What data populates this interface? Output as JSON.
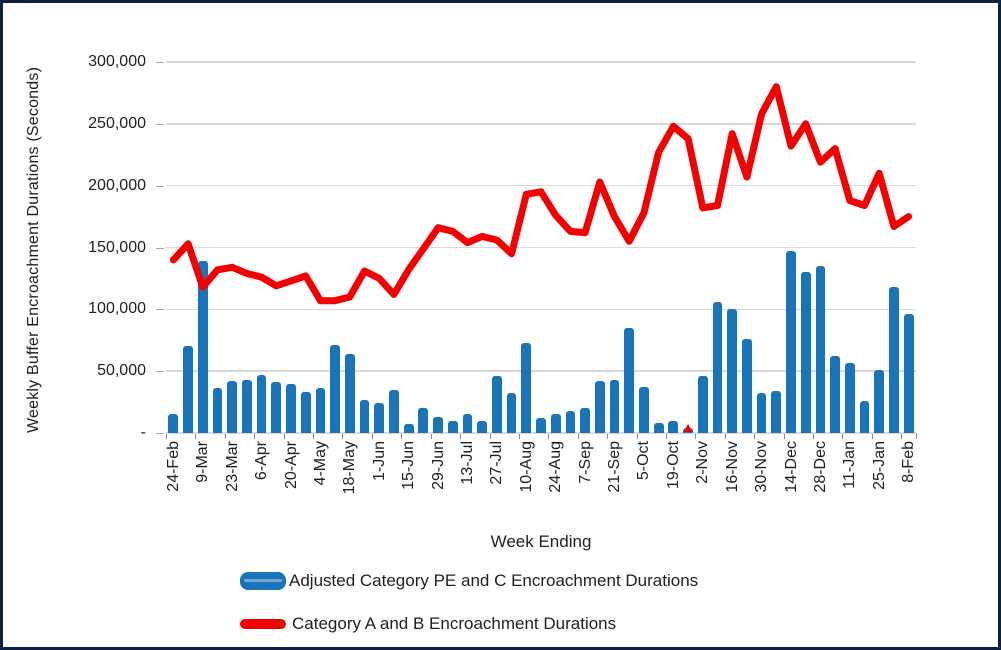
{
  "figure": {
    "border_color": "#0d2145",
    "background_color": "#ffffff",
    "gridline_color": "#d9d9d9",
    "bar_color": "#1a74b8",
    "line_color": "#f40000"
  },
  "chart_data": {
    "type": "combo",
    "title": "",
    "xlabel": "Week Ending",
    "ylabel": "Weekly Buffer Encroachment Durations (Seconds)",
    "ylim": [
      0,
      300000
    ],
    "y_tick_interval": 50000,
    "y_tick_labels": [
      "-",
      "50,000",
      "100,000",
      "150,000",
      "200,000",
      "250,000",
      "300,000"
    ],
    "n_categories": 51,
    "x_labels_every_n_categories": 2,
    "x_tick_labels": [
      "24-Feb",
      "9-Mar",
      "23-Mar",
      "6-Apr",
      "20-Apr",
      "4-May",
      "18-May",
      "1-Jun",
      "15-Jun",
      "29-Jun",
      "13-Jul",
      "27-Jul",
      "10-Aug",
      "24-Aug",
      "7-Sep",
      "21-Sep",
      "5-Oct",
      "19-Oct",
      "2-Nov",
      "16-Nov",
      "30-Nov",
      "14-Dec",
      "28-Dec",
      "11-Jan",
      "25-Jan",
      "8-Feb"
    ],
    "grid": "horizontal",
    "legend_position": "bottom-left",
    "series": [
      {
        "name": "Adjusted Category PE and C Encroachment Durations",
        "type": "bar",
        "color": "#1a74b8",
        "values": [
          15000,
          70000,
          139000,
          36000,
          42000,
          43000,
          47000,
          41000,
          40000,
          33000,
          36000,
          71000,
          64000,
          27000,
          24000,
          35000,
          7000,
          20000,
          13000,
          10000,
          15000,
          10000,
          46000,
          32000,
          73000,
          12000,
          15000,
          18000,
          20000,
          42000,
          43000,
          85000,
          37000,
          8000,
          10000,
          4000,
          46000,
          106000,
          100000,
          76000,
          32000,
          34000,
          147000,
          130000,
          135000,
          62000,
          57000,
          26000,
          51000,
          118000,
          96000
        ]
      },
      {
        "name": "Category A and B Encroachment Durations",
        "type": "line",
        "color": "#f40000",
        "values": [
          140000,
          153000,
          118000,
          132000,
          134000,
          129000,
          126000,
          119000,
          123000,
          127000,
          107000,
          107000,
          110000,
          131000,
          125000,
          112000,
          132000,
          149000,
          166000,
          163000,
          154000,
          159000,
          156000,
          145000,
          193000,
          195000,
          176000,
          163000,
          162000,
          203000,
          175000,
          155000,
          178000,
          227000,
          248000,
          238000,
          182000,
          184000,
          242000,
          207000,
          258000,
          280000,
          232000,
          250000,
          219000,
          230000,
          188000,
          184000,
          210000,
          167000,
          175000
        ]
      }
    ]
  }
}
